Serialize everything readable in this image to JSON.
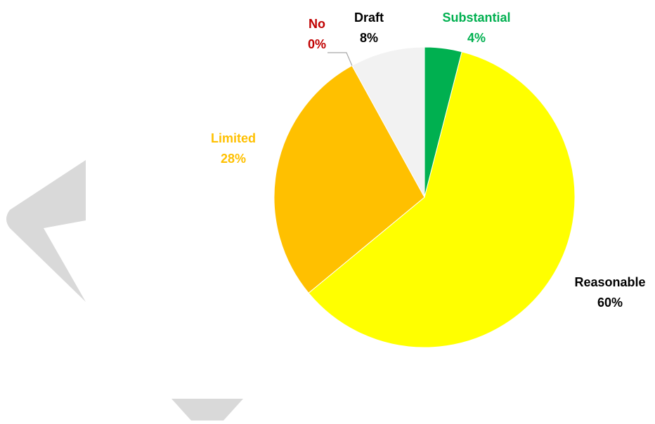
{
  "chart_data": {
    "type": "pie",
    "slices": [
      {
        "label": "Substantial",
        "value": 4,
        "value_label": "4%",
        "color": "#00B050",
        "text_color": "#00B050"
      },
      {
        "label": "Reasonable",
        "value": 60,
        "value_label": "60%",
        "color": "#FFFF00",
        "text_color": "#000000"
      },
      {
        "label": "Limited",
        "value": 28,
        "value_label": "28%",
        "color": "#FFC000",
        "text_color": "#FFC000"
      },
      {
        "label": "No",
        "value": 0,
        "value_label": "0%",
        "color": "#C00000",
        "text_color": "#C00000"
      },
      {
        "label": "Draft",
        "value": 8,
        "value_label": "8%",
        "color": "#F2F2F2",
        "text_color": "#000000"
      }
    ],
    "start_angle_deg": 0,
    "direction": "clockwise",
    "legend": "none",
    "background_decoration_color": "#D9D9D9"
  }
}
